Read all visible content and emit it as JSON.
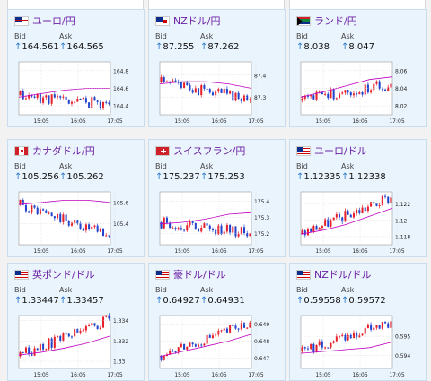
{
  "labels": {
    "bid": "Bid",
    "ask": "Ask"
  },
  "up_arrow": "↑",
  "colors": {
    "up": "#e8202a",
    "down": "#2244cc",
    "ma": "#c000c0",
    "pair_text": "#6b1fa3",
    "card_bg": "#eaf4fd"
  },
  "cards": [
    {
      "pair": "ユーロ/円",
      "flag": "eu-flag",
      "bid": "164.561",
      "ask": "164.565",
      "yticks": [
        "164.8",
        "164.6",
        "164.4"
      ],
      "ylim": [
        164.3,
        164.9
      ],
      "xticks": [
        "15:05",
        "16:05",
        "17:05"
      ],
      "start": 164.52,
      "end": 164.42,
      "ma": [
        164.5,
        164.54,
        164.58,
        164.6,
        164.6
      ],
      "seed": 11
    },
    {
      "pair": "NZドル/円",
      "flag": "nz-flag",
      "bid": "87.255",
      "ask": "87.262",
      "yticks": [
        "87.4",
        "87.3"
      ],
      "ylim": [
        87.22,
        87.46
      ],
      "xticks": [
        "15:05",
        "16:05",
        "17:05"
      ],
      "start": 87.37,
      "end": 87.29,
      "ma": [
        87.36,
        87.37,
        87.37,
        87.36,
        87.34
      ],
      "seed": 23
    },
    {
      "pair": "ランド/円",
      "flag": "za-flag",
      "bid": "8.038",
      "ask": "8.047",
      "yticks": [
        "8.06",
        "8.04",
        "8.02"
      ],
      "ylim": [
        8.01,
        8.07
      ],
      "xticks": [
        "15:05",
        "16:05",
        "17:05"
      ],
      "start": 8.026,
      "end": 8.045,
      "ma": [
        8.03,
        8.036,
        8.043,
        8.05,
        8.053
      ],
      "seed": 37
    },
    {
      "pair": "カナダドル/円",
      "flag": "ca-flag",
      "bid": "105.256",
      "ask": "105.262",
      "yticks": [
        "105.6",
        "105.4"
      ],
      "ylim": [
        105.2,
        105.7
      ],
      "xticks": [
        "15:05",
        "16:05",
        "17:05"
      ],
      "start": 105.58,
      "end": 105.28,
      "ma": [
        105.58,
        105.6,
        105.62,
        105.62,
        105.6
      ],
      "seed": 41
    },
    {
      "pair": "スイスフラン/円",
      "flag": "ch-flag",
      "bid": "175.237",
      "ask": "175.253",
      "yticks": [
        "175.4",
        "175.3",
        "175.2"
      ],
      "ylim": [
        175.13,
        175.46
      ],
      "xticks": [
        "15:05",
        "16:05",
        "17:05"
      ],
      "start": 175.27,
      "end": 175.2,
      "ma": [
        175.26,
        175.27,
        175.29,
        175.32,
        175.33
      ],
      "seed": 53
    },
    {
      "pair": "ユーロ/ドル",
      "flag": "us-flag",
      "bid": "1.12335",
      "ask": "1.12338",
      "yticks": [
        "1.122",
        "1.12",
        "1.118"
      ],
      "ylim": [
        1.117,
        1.1235
      ],
      "xticks": [
        "15:05",
        "16:05",
        "17:05"
      ],
      "start": 1.1183,
      "end": 1.1228,
      "ma": [
        1.1183,
        1.1188,
        1.1195,
        1.1205,
        1.1215
      ],
      "seed": 67
    },
    {
      "pair": "英ポンド/ドル",
      "flag": "us-flag",
      "bid": "1.33447",
      "ask": "1.33457",
      "yticks": [
        "1.334",
        "1.332",
        "1.33"
      ],
      "ylim": [
        1.3293,
        1.3345
      ],
      "xticks": [
        "15:05",
        "16:05",
        "17:05"
      ],
      "start": 1.3305,
      "end": 1.3342,
      "ma": [
        1.3306,
        1.3309,
        1.3313,
        1.3318,
        1.3325
      ],
      "seed": 79
    },
    {
      "pair": "豪ドル/ドル",
      "flag": "us-flag",
      "bid": "0.64927",
      "ask": "0.64931",
      "yticks": [
        "0.649",
        "0.648",
        "0.647"
      ],
      "ylim": [
        0.6464,
        0.6495
      ],
      "xticks": [
        "15:05",
        "16:05",
        "17:05"
      ],
      "start": 0.6471,
      "end": 0.6491,
      "ma": [
        0.6471,
        0.6474,
        0.6477,
        0.648,
        0.6484
      ],
      "seed": 83
    },
    {
      "pair": "NZドル/ドル",
      "flag": "us-flag",
      "bid": "0.59558",
      "ask": "0.59572",
      "yticks": [
        "0.595",
        "0.594"
      ],
      "ylim": [
        0.5933,
        0.5961
      ],
      "xticks": [
        "15:05",
        "16:05",
        "17:05"
      ],
      "start": 0.5942,
      "end": 0.5958,
      "ma": [
        0.5941,
        0.5942,
        0.5943,
        0.5944,
        0.5947
      ],
      "seed": 97
    }
  ]
}
